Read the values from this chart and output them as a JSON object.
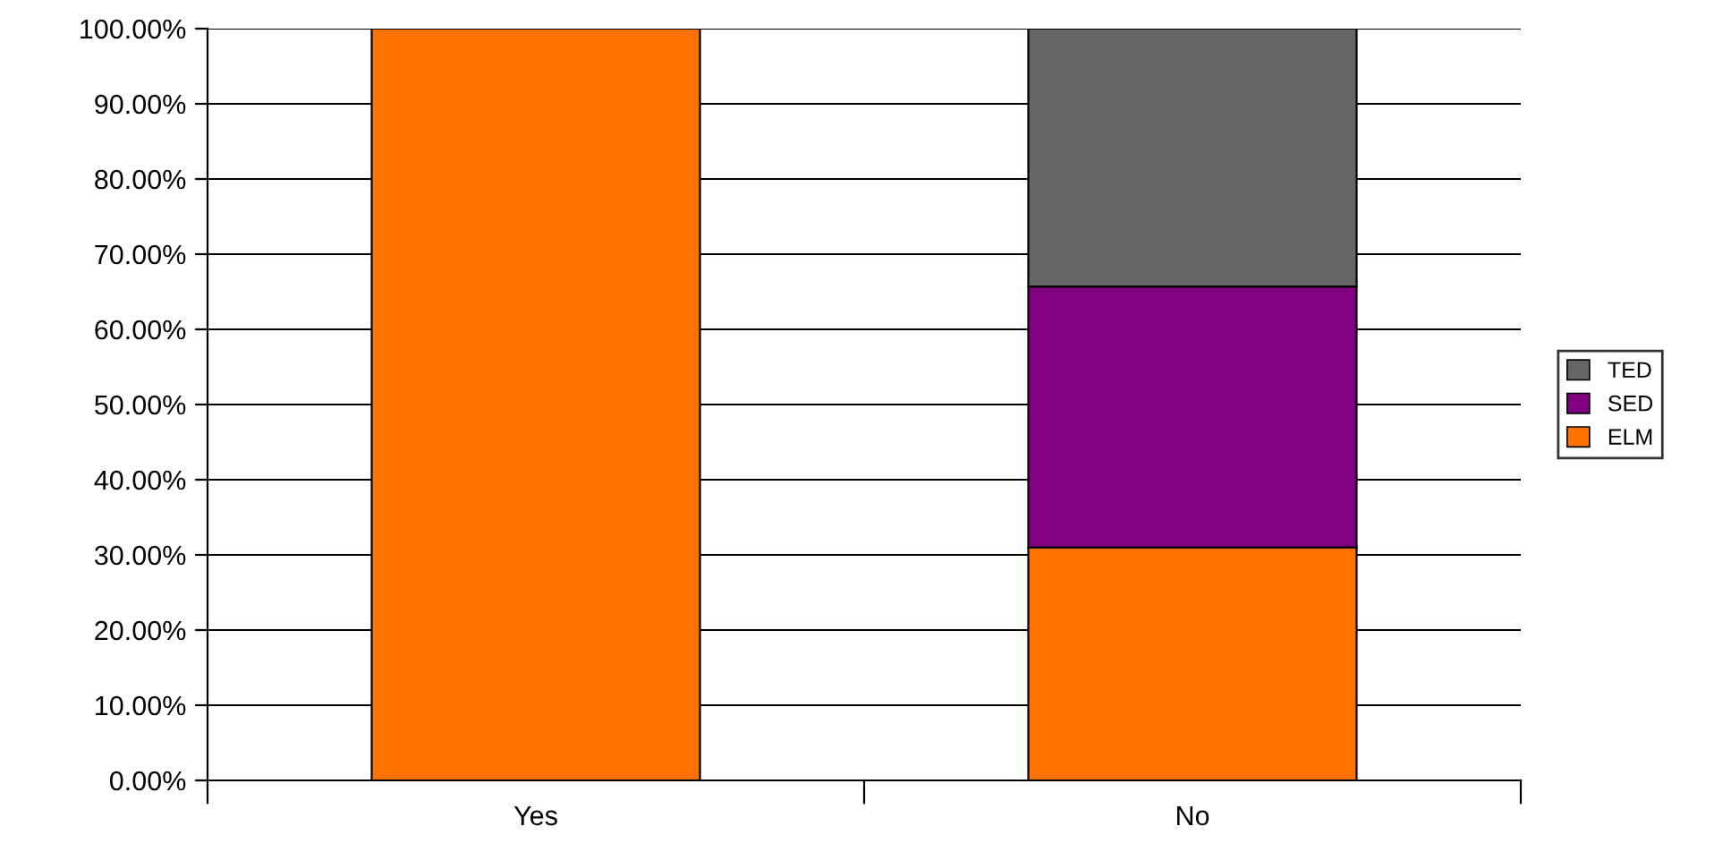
{
  "chart_data": {
    "type": "bar",
    "stacked": true,
    "categories": [
      "Yes",
      "No"
    ],
    "series": [
      {
        "name": "ELM",
        "color": "#ff7200",
        "values": [
          100,
          31
        ]
      },
      {
        "name": "SED",
        "color": "#800080",
        "values": [
          null,
          34.7
        ]
      },
      {
        "name": "TED",
        "color": "#666666",
        "values": [
          null,
          34.3
        ]
      }
    ],
    "ylim": [
      0,
      100
    ],
    "yticks": [
      {
        "value": 0,
        "label": "0.00%"
      },
      {
        "value": 10,
        "label": "10.00%"
      },
      {
        "value": 20,
        "label": "20.00%"
      },
      {
        "value": 30,
        "label": "30.00%"
      },
      {
        "value": 40,
        "label": "40.00%"
      },
      {
        "value": 50,
        "label": "50.00%"
      },
      {
        "value": 60,
        "label": "60.00%"
      },
      {
        "value": 70,
        "label": "70.00%"
      },
      {
        "value": 80,
        "label": "80.00%"
      },
      {
        "value": 90,
        "label": "90.00%"
      },
      {
        "value": 100,
        "label": "100.00%"
      }
    ],
    "grid": "y",
    "legend": "right"
  }
}
